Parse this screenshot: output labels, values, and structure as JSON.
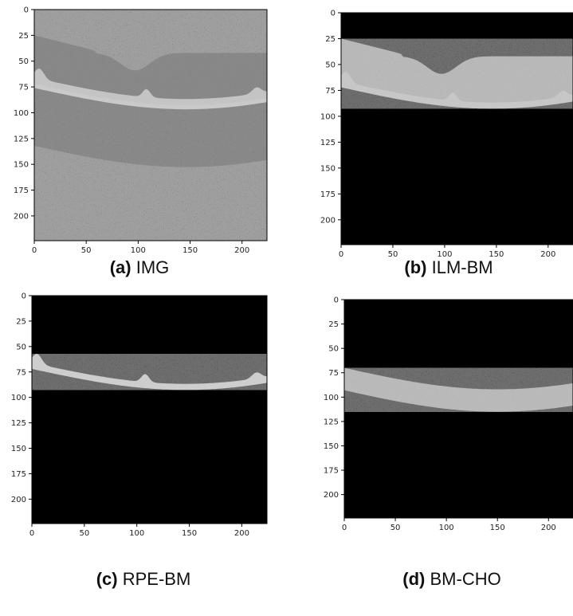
{
  "figure": {
    "panels": [
      {
        "id": "a",
        "letter": "(a)",
        "name": "IMG",
        "kind": "full"
      },
      {
        "id": "b",
        "letter": "(b)",
        "name": "ILM-BM",
        "kind": "ilm_bm"
      },
      {
        "id": "c",
        "letter": "(c)",
        "name": "RPE-BM",
        "kind": "rpe_bm"
      },
      {
        "id": "d",
        "letter": "(d)",
        "name": "BM-CHO",
        "kind": "bm_cho"
      }
    ]
  },
  "chart_data": [
    {
      "type": "image",
      "panel": "a",
      "title": "(a) IMG",
      "xlim": [
        0,
        224
      ],
      "ylim": [
        224,
        0
      ],
      "xticks": [
        0,
        50,
        100,
        150,
        200
      ],
      "yticks": [
        0,
        25,
        50,
        75,
        100,
        125,
        150,
        175,
        200
      ]
    },
    {
      "type": "image",
      "panel": "b",
      "title": "(b) ILM-BM",
      "xlim": [
        0,
        224
      ],
      "ylim": [
        224,
        0
      ],
      "xticks": [
        0,
        50,
        100,
        150,
        200
      ],
      "yticks": [
        0,
        25,
        50,
        75,
        100,
        125,
        150,
        175,
        200
      ]
    },
    {
      "type": "image",
      "panel": "c",
      "title": "(c) RPE-BM",
      "xlim": [
        0,
        224
      ],
      "ylim": [
        224,
        0
      ],
      "xticks": [
        0,
        50,
        100,
        150,
        200
      ],
      "yticks": [
        0,
        25,
        50,
        75,
        100,
        125,
        150,
        175,
        200
      ]
    },
    {
      "type": "image",
      "panel": "d",
      "title": "(d) BM-CHO",
      "xlim": [
        0,
        224
      ],
      "ylim": [
        224,
        0
      ],
      "xticks": [
        0,
        50,
        100,
        150,
        200
      ],
      "yticks": [
        0,
        25,
        50,
        75,
        100,
        125,
        150,
        175,
        200
      ]
    }
  ]
}
